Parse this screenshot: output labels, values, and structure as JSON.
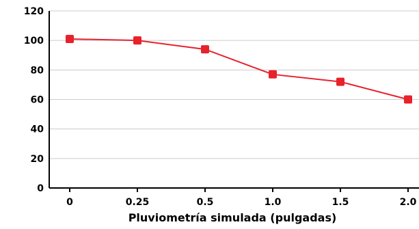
{
  "chart_data": {
    "type": "line",
    "x": [
      0,
      0.25,
      0.5,
      1.0,
      1.5,
      2.0
    ],
    "x_tick_labels": [
      "0",
      "0.25",
      "0.5",
      "1.0",
      "1.5",
      "2.0"
    ],
    "y_ticks": [
      0,
      20,
      40,
      60,
      80,
      100,
      120
    ],
    "y_tick_labels": [
      "0",
      "20",
      "40",
      "60",
      "80",
      "100",
      "120"
    ],
    "series": [
      {
        "values": [
          101,
          100,
          94,
          77,
          72,
          60
        ],
        "color": "#e8212b",
        "marker": "square"
      }
    ],
    "xlabel": "Pluviometría simulada (pulgadas)",
    "ylabel": "",
    "ylim": [
      0,
      120
    ],
    "x_scale": "categorical-evenly-spaced",
    "grid": "horizontal",
    "grid_color": "#cccccc",
    "axis_color": "#000000",
    "title": ""
  }
}
